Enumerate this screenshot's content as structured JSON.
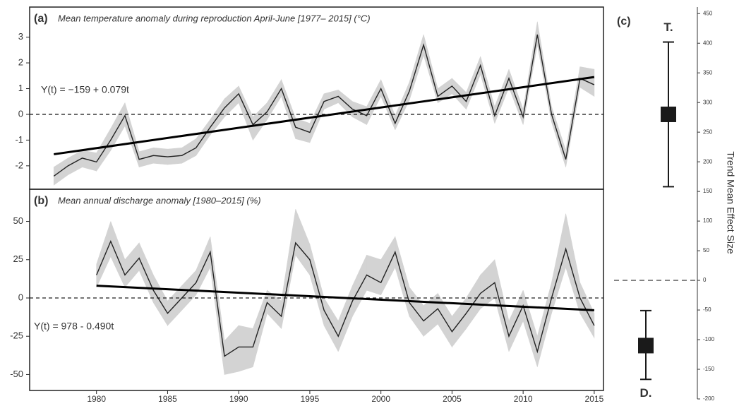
{
  "chart_data": [
    {
      "type": "line",
      "label": "(a)",
      "title": "Mean temperature anomaly during reproduction April-June [1977– 2015] (°C)",
      "annotation": "Y(t) = −159 + 0.079t",
      "x": [
        1977,
        1978,
        1979,
        1980,
        1981,
        1982,
        1983,
        1984,
        1985,
        1986,
        1987,
        1988,
        1989,
        1990,
        1991,
        1992,
        1993,
        1994,
        1995,
        1996,
        1997,
        1998,
        1999,
        2000,
        2001,
        2002,
        2003,
        2004,
        2005,
        2006,
        2007,
        2008,
        2009,
        2010,
        2011,
        2012,
        2013,
        2014,
        2015
      ],
      "values": [
        -2.4,
        -2.0,
        -1.7,
        -1.85,
        -1.0,
        -0.05,
        -1.75,
        -1.6,
        -1.65,
        -1.6,
        -1.3,
        -0.5,
        0.25,
        0.8,
        -0.4,
        0.1,
        1.0,
        -0.5,
        -0.7,
        0.5,
        0.7,
        0.2,
        -0.05,
        1.0,
        -0.35,
        0.9,
        2.7,
        0.7,
        1.1,
        0.5,
        1.9,
        -0.05,
        1.4,
        -0.1,
        3.1,
        0.0,
        -1.75,
        1.4,
        1.15
      ],
      "lower": [
        -2.75,
        -2.35,
        -2.05,
        -2.2,
        -1.4,
        -0.45,
        -2.05,
        -1.9,
        -1.95,
        -1.9,
        -1.6,
        -0.8,
        -0.1,
        0.45,
        -1.0,
        -0.2,
        0.7,
        -0.95,
        -1.1,
        0.2,
        0.45,
        -0.1,
        -0.4,
        0.7,
        -0.6,
        0.55,
        2.3,
        0.45,
        0.8,
        0.2,
        1.55,
        -0.35,
        1.05,
        -0.4,
        2.7,
        -0.3,
        -2.05,
        1.05,
        0.7
      ],
      "upper": [
        -2.05,
        -1.7,
        -1.4,
        -1.5,
        -0.55,
        0.45,
        -1.45,
        -1.3,
        -1.35,
        -1.3,
        -0.95,
        -0.2,
        0.6,
        1.1,
        -0.1,
        0.45,
        1.35,
        -0.15,
        -0.35,
        0.8,
        0.95,
        0.5,
        0.3,
        1.35,
        -0.05,
        1.25,
        3.1,
        1.0,
        1.4,
        0.85,
        2.25,
        0.3,
        1.75,
        0.2,
        3.6,
        0.3,
        -1.4,
        1.85,
        1.75
      ],
      "trend": {
        "x": [
          1977,
          2015
        ],
        "values": [
          -1.55,
          1.45
        ]
      },
      "color": "#222222",
      "band_color": "#d3d3d3",
      "xlim": [
        1975.3,
        2015.65
      ],
      "ylim": [
        -2.91,
        4.17
      ],
      "yticks": [
        -2,
        -1,
        0,
        1,
        2,
        3
      ]
    },
    {
      "type": "line",
      "label": "(b)",
      "title": "Mean annual discharge anomaly [1980–2015] (%)",
      "annotation": "Y(t) = 978 - 0.490t",
      "x": [
        1980,
        1981,
        1982,
        1983,
        1984,
        1985,
        1986,
        1987,
        1988,
        1989,
        1990,
        1991,
        1992,
        1993,
        1994,
        1995,
        1996,
        1997,
        1998,
        1999,
        2000,
        2001,
        2002,
        2003,
        2004,
        2005,
        2006,
        2007,
        2008,
        2009,
        2010,
        2011,
        2012,
        2013,
        2014,
        2015
      ],
      "values": [
        15,
        37,
        15,
        26,
        5,
        -10,
        0,
        10,
        30,
        -38,
        -32,
        -32,
        -3,
        -12,
        36,
        25,
        -8,
        -25,
        -2,
        15,
        10,
        30,
        -3,
        -15,
        -7,
        -22,
        -10,
        3,
        10,
        -25,
        -5,
        -35,
        0,
        32,
        0,
        -18
      ],
      "lower": [
        7,
        27,
        7,
        18,
        -3,
        -18,
        -8,
        2,
        20,
        -50,
        -48,
        -45,
        -10,
        -20,
        28,
        15,
        -18,
        -35,
        -12,
        5,
        2,
        20,
        -12,
        -25,
        -17,
        -32,
        -20,
        -7,
        0,
        -35,
        -15,
        -45,
        -10,
        20,
        -10,
        -26
      ],
      "upper": [
        22,
        50,
        25,
        36,
        15,
        -2,
        8,
        18,
        40,
        -28,
        -18,
        -20,
        5,
        -2,
        58,
        35,
        0,
        -15,
        8,
        28,
        25,
        40,
        7,
        -5,
        3,
        -12,
        0,
        15,
        25,
        -15,
        5,
        -25,
        10,
        55,
        10,
        -10
      ],
      "trend": {
        "x": [
          1980,
          2015
        ],
        "values": [
          8,
          -8
        ]
      },
      "color": "#222222",
      "band_color": "#d3d3d3",
      "xlim": [
        1975.3,
        2015.65
      ],
      "ylim": [
        -60.4,
        71
      ],
      "yticks": [
        -50,
        -25,
        0,
        25,
        50
      ],
      "xticks": [
        1980,
        1985,
        1990,
        1995,
        2000,
        2005,
        2010,
        2015
      ]
    },
    {
      "type": "errorbar",
      "label": "(c)",
      "ylabel": "Trend Mean Effect Size",
      "categories": [
        "T.",
        "D."
      ],
      "values": [
        280,
        -110
      ],
      "lower": [
        158,
        -167
      ],
      "upper": [
        402,
        -51
      ],
      "color": "#1a1a1a",
      "ylim": [
        -200,
        461
      ],
      "yticks": [
        -200,
        -150,
        -100,
        -50,
        0,
        50,
        100,
        150,
        200,
        250,
        300,
        350,
        400,
        450
      ]
    }
  ]
}
